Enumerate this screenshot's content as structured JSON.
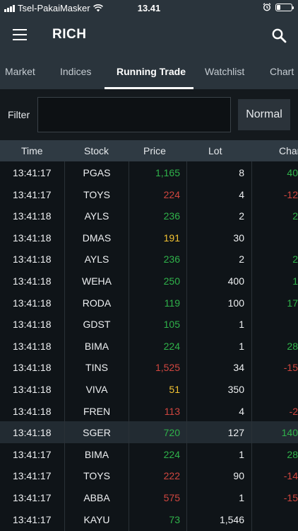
{
  "status_bar": {
    "carrier": "Tsel-PakaiMasker",
    "time": "13.41",
    "icons": [
      "signal-icon",
      "wifi-icon",
      "alarm-icon",
      "battery-icon"
    ],
    "battery_level": 0.25
  },
  "app_bar": {
    "title": "RICH",
    "menu_icon": "menu-icon",
    "search_icon": "search-icon"
  },
  "tabs": [
    {
      "label": "Market",
      "active": false
    },
    {
      "label": "Indices",
      "active": false
    },
    {
      "label": "Running Trade",
      "active": true
    },
    {
      "label": "Watchlist",
      "active": false
    },
    {
      "label": "Chart",
      "active": false
    }
  ],
  "filter": {
    "label": "Filter",
    "value": "",
    "placeholder": "",
    "mode_label": "Normal"
  },
  "table": {
    "columns": [
      "Time",
      "Stock",
      "Price",
      "Lot",
      "Change"
    ],
    "rows": [
      {
        "time": "13:41:17",
        "stock": "PGAS",
        "price": "1,165",
        "lot": "8",
        "change": "40",
        "dir": "up"
      },
      {
        "time": "13:41:17",
        "stock": "TOYS",
        "price": "224",
        "lot": "4",
        "change": "-12",
        "dir": "down"
      },
      {
        "time": "13:41:18",
        "stock": "AYLS",
        "price": "236",
        "lot": "2",
        "change": "2",
        "dir": "up"
      },
      {
        "time": "13:41:18",
        "stock": "DMAS",
        "price": "191",
        "lot": "30",
        "change": "",
        "dir": "flat"
      },
      {
        "time": "13:41:18",
        "stock": "AYLS",
        "price": "236",
        "lot": "2",
        "change": "2",
        "dir": "up"
      },
      {
        "time": "13:41:18",
        "stock": "WEHA",
        "price": "250",
        "lot": "400",
        "change": "1",
        "dir": "up"
      },
      {
        "time": "13:41:18",
        "stock": "RODA",
        "price": "119",
        "lot": "100",
        "change": "17",
        "dir": "up"
      },
      {
        "time": "13:41:18",
        "stock": "GDST",
        "price": "105",
        "lot": "1",
        "change": "",
        "dir": "up"
      },
      {
        "time": "13:41:18",
        "stock": "BIMA",
        "price": "224",
        "lot": "1",
        "change": "28",
        "dir": "up"
      },
      {
        "time": "13:41:18",
        "stock": "TINS",
        "price": "1,525",
        "lot": "34",
        "change": "-15",
        "dir": "down"
      },
      {
        "time": "13:41:18",
        "stock": "VIVA",
        "price": "51",
        "lot": "350",
        "change": "",
        "dir": "flat"
      },
      {
        "time": "13:41:18",
        "stock": "FREN",
        "price": "113",
        "lot": "4",
        "change": "-2",
        "dir": "down"
      },
      {
        "time": "13:41:18",
        "stock": "SGER",
        "price": "720",
        "lot": "127",
        "change": "140",
        "dir": "up",
        "highlight": true
      },
      {
        "time": "13:41:17",
        "stock": "BIMA",
        "price": "224",
        "lot": "1",
        "change": "28",
        "dir": "up"
      },
      {
        "time": "13:41:17",
        "stock": "TOYS",
        "price": "222",
        "lot": "90",
        "change": "-14",
        "dir": "down"
      },
      {
        "time": "13:41:17",
        "stock": "ABBA",
        "price": "575",
        "lot": "1",
        "change": "-15",
        "dir": "down"
      },
      {
        "time": "13:41:17",
        "stock": "KAYU",
        "price": "73",
        "lot": "1,546",
        "change": "",
        "dir": "up"
      }
    ]
  },
  "colors": {
    "up": "#2fb24a",
    "down": "#d0463f",
    "flat": "#f2c232"
  }
}
